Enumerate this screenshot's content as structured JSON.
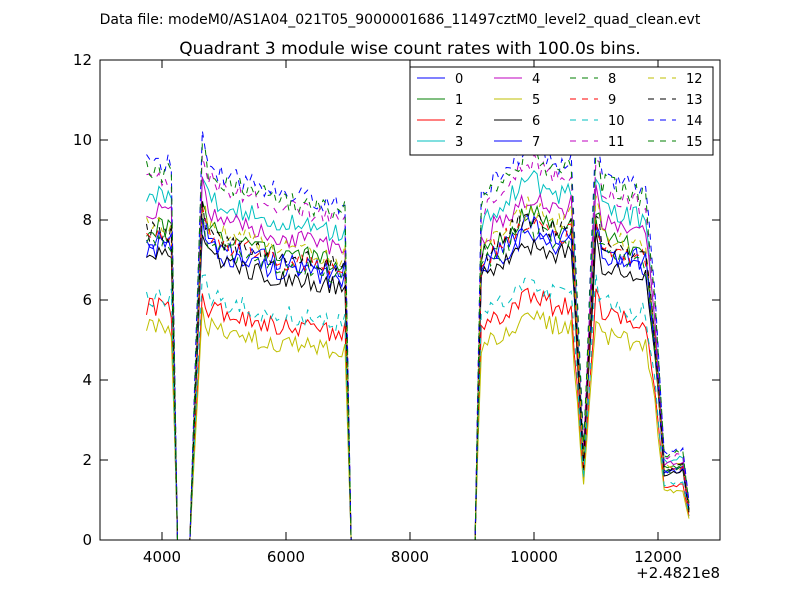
{
  "figure_title": "Data file: modeM0/AS1A04_021T05_9000001686_11497cztM0_level2_quad_clean.evt",
  "chart_data": {
    "type": "line",
    "title": "Quadrant 3 module wise count rates with 100.0s bins.",
    "xlabel": "",
    "ylabel": "",
    "x_offset_label": "+2.4821e8",
    "xlim": [
      3000,
      13000
    ],
    "ylim": [
      0,
      12
    ],
    "x_ticks": [
      4000,
      6000,
      8000,
      10000,
      12000
    ],
    "x_tick_labels": [
      "4000",
      "6000",
      "8000",
      "10000",
      "12000"
    ],
    "y_ticks": [
      0,
      2,
      4,
      6,
      8,
      10,
      12
    ],
    "y_tick_labels": [
      "0",
      "2",
      "4",
      "6",
      "8",
      "10",
      "12"
    ],
    "grid": false,
    "legend_position": "top-right",
    "legend_columns": 4,
    "segments": [
      {
        "start": 3800,
        "end": 4100,
        "step": 100
      },
      {
        "start": 4550,
        "end": 6950,
        "step": 100
      },
      {
        "start": 9100,
        "end": 10800,
        "step": 100
      },
      {
        "start": 10900,
        "end": 11850,
        "step": 100
      }
    ],
    "shape_profile": [
      {
        "x": 3750,
        "f": 1.0
      },
      {
        "x": 4150,
        "f": 1.0
      },
      {
        "x": 4250,
        "f": 0.0
      },
      {
        "x": 4450,
        "f": 0.0
      },
      {
        "x": 4650,
        "f": 1.08
      },
      {
        "x": 4750,
        "f": 1.0
      },
      {
        "x": 5000,
        "f": 0.97
      },
      {
        "x": 6000,
        "f": 0.92
      },
      {
        "x": 6850,
        "f": 0.89
      },
      {
        "x": 6950,
        "f": 0.91
      },
      {
        "x": 7050,
        "f": 0.0
      },
      {
        "x": 9050,
        "f": 0.0
      },
      {
        "x": 9150,
        "f": 0.92
      },
      {
        "x": 9600,
        "f": 1.0
      },
      {
        "x": 9900,
        "f": 1.05
      },
      {
        "x": 10400,
        "f": 1.0
      },
      {
        "x": 10600,
        "f": 1.03
      },
      {
        "x": 10800,
        "f": 0.25
      },
      {
        "x": 11000,
        "f": 1.08
      },
      {
        "x": 11100,
        "f": 0.97
      },
      {
        "x": 11800,
        "f": 0.93
      },
      {
        "x": 11950,
        "f": 0.65
      },
      {
        "x": 12100,
        "f": 0.23
      },
      {
        "x": 12400,
        "f": 0.24
      },
      {
        "x": 12500,
        "f": 0.1
      }
    ],
    "series": [
      {
        "name": "0",
        "color": "#0000ff",
        "dash": "solid",
        "level": 7.3
      },
      {
        "name": "1",
        "color": "#007f00",
        "dash": "solid",
        "level": 7.8
      },
      {
        "name": "2",
        "color": "#ff0000",
        "dash": "solid",
        "level": 5.8
      },
      {
        "name": "3",
        "color": "#00bfbf",
        "dash": "solid",
        "level": 8.6
      },
      {
        "name": "4",
        "color": "#bf00bf",
        "dash": "solid",
        "level": 8.2
      },
      {
        "name": "5",
        "color": "#bfbf00",
        "dash": "solid",
        "level": 5.3
      },
      {
        "name": "6",
        "color": "#000000",
        "dash": "solid",
        "level": 7.1
      },
      {
        "name": "7",
        "color": "#0000ff",
        "dash": "solid",
        "level": 7.5
      },
      {
        "name": "8",
        "color": "#007f00",
        "dash": "dashed",
        "level": 7.4
      },
      {
        "name": "9",
        "color": "#ff0000",
        "dash": "dashed",
        "level": 7.6
      },
      {
        "name": "10",
        "color": "#00bfbf",
        "dash": "dashed",
        "level": 6.1
      },
      {
        "name": "11",
        "color": "#bf00bf",
        "dash": "dashed",
        "level": 9.0
      },
      {
        "name": "12",
        "color": "#bfbf00",
        "dash": "dashed",
        "level": 7.9
      },
      {
        "name": "13",
        "color": "#000000",
        "dash": "dashed",
        "level": 7.7
      },
      {
        "name": "14",
        "color": "#0000ff",
        "dash": "dashed",
        "level": 9.4
      },
      {
        "name": "15",
        "color": "#007f00",
        "dash": "dashed",
        "level": 9.2
      }
    ]
  }
}
